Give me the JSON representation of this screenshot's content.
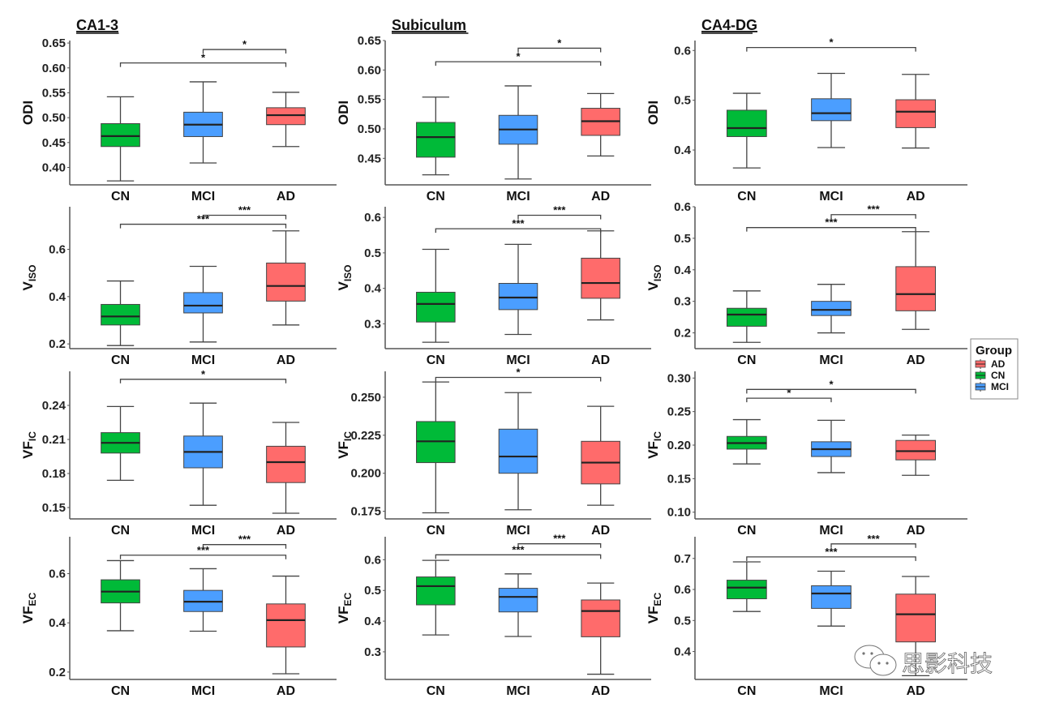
{
  "colors": {
    "CN": "#00BA38",
    "MCI": "#4B9EFF",
    "AD": "#FF6B6B",
    "line": "#444444",
    "median": "#222222"
  },
  "watermark": "思影科技",
  "legend": {
    "title": "Group",
    "items": [
      {
        "label": "AD",
        "group": "AD"
      },
      {
        "label": "CN",
        "group": "CN"
      },
      {
        "label": "MCI",
        "group": "MCI"
      }
    ],
    "position": "right"
  },
  "chart_data": [
    {
      "type": "boxplot",
      "region": "CA1-3",
      "title": "CA1-3",
      "ylabel": "ODI",
      "ylabel_sub": "",
      "categories": [
        "CN",
        "MCI",
        "AD"
      ],
      "ylim": [
        0.365,
        0.655
      ],
      "yticks": [
        0.4,
        0.45,
        0.5,
        0.55,
        0.6,
        0.65
      ],
      "tick_fmt": 2,
      "boxes": [
        {
          "group": "CN",
          "min": 0.373,
          "q1": 0.442,
          "median": 0.463,
          "q3": 0.488,
          "max": 0.542
        },
        {
          "group": "MCI",
          "min": 0.409,
          "q1": 0.462,
          "median": 0.486,
          "q3": 0.511,
          "max": 0.572
        },
        {
          "group": "AD",
          "min": 0.442,
          "q1": 0.486,
          "median": 0.505,
          "q3": 0.52,
          "max": 0.551
        }
      ],
      "brackets": [
        {
          "from": "MCI",
          "to": "AD",
          "label": "*",
          "level": 0.637
        },
        {
          "from": "CN",
          "to": "AD",
          "label": "*",
          "level": 0.61
        }
      ]
    },
    {
      "type": "boxplot",
      "region": "Subiculum",
      "title": "Subiculum",
      "ylabel": "ODI",
      "ylabel_sub": "",
      "categories": [
        "CN",
        "MCI",
        "AD"
      ],
      "ylim": [
        0.405,
        0.65
      ],
      "yticks": [
        0.45,
        0.5,
        0.55,
        0.6,
        0.65
      ],
      "tick_fmt": 2,
      "boxes": [
        {
          "group": "CN",
          "min": 0.422,
          "q1": 0.452,
          "median": 0.486,
          "q3": 0.511,
          "max": 0.554
        },
        {
          "group": "MCI",
          "min": 0.415,
          "q1": 0.474,
          "median": 0.499,
          "q3": 0.523,
          "max": 0.573
        },
        {
          "group": "AD",
          "min": 0.454,
          "q1": 0.489,
          "median": 0.513,
          "q3": 0.535,
          "max": 0.56
        }
      ],
      "brackets": [
        {
          "from": "MCI",
          "to": "AD",
          "label": "*",
          "level": 0.637
        },
        {
          "from": "CN",
          "to": "AD",
          "label": "*",
          "level": 0.614
        }
      ]
    },
    {
      "type": "boxplot",
      "region": "CA4-DG",
      "title": "CA4-DG",
      "ylabel": "ODI",
      "ylabel_sub": "",
      "categories": [
        "CN",
        "MCI",
        "AD"
      ],
      "ylim": [
        0.33,
        0.62
      ],
      "yticks": [
        0.4,
        0.5,
        0.6
      ],
      "tick_fmt": 1,
      "boxes": [
        {
          "group": "CN",
          "min": 0.364,
          "q1": 0.427,
          "median": 0.444,
          "q3": 0.48,
          "max": 0.514
        },
        {
          "group": "MCI",
          "min": 0.405,
          "q1": 0.459,
          "median": 0.474,
          "q3": 0.503,
          "max": 0.554
        },
        {
          "group": "AD",
          "min": 0.404,
          "q1": 0.445,
          "median": 0.477,
          "q3": 0.501,
          "max": 0.552
        }
      ],
      "brackets": [
        {
          "from": "CN",
          "to": "AD",
          "label": "*",
          "level": 0.606
        }
      ]
    },
    {
      "type": "boxplot",
      "region": "CA1-3",
      "title": "",
      "ylabel": "V",
      "ylabel_sub": "ISO",
      "categories": [
        "CN",
        "MCI",
        "AD"
      ],
      "ylim": [
        0.18,
        0.78
      ],
      "yticks": [
        0.2,
        0.4,
        0.6
      ],
      "tick_fmt": 1,
      "boxes": [
        {
          "group": "CN",
          "min": 0.193,
          "q1": 0.28,
          "median": 0.316,
          "q3": 0.367,
          "max": 0.466
        },
        {
          "group": "MCI",
          "min": 0.208,
          "q1": 0.331,
          "median": 0.362,
          "q3": 0.417,
          "max": 0.528
        },
        {
          "group": "AD",
          "min": 0.28,
          "q1": 0.381,
          "median": 0.445,
          "q3": 0.542,
          "max": 0.678
        }
      ],
      "brackets": [
        {
          "from": "MCI",
          "to": "AD",
          "label": "***",
          "level": 0.744
        },
        {
          "from": "CN",
          "to": "AD",
          "label": "***",
          "level": 0.706
        }
      ]
    },
    {
      "type": "boxplot",
      "region": "Subiculum",
      "title": "",
      "ylabel": "V",
      "ylabel_sub": "ISO",
      "categories": [
        "CN",
        "MCI",
        "AD"
      ],
      "ylim": [
        0.23,
        0.63
      ],
      "yticks": [
        0.3,
        0.4,
        0.5,
        0.6
      ],
      "tick_fmt": 1,
      "boxes": [
        {
          "group": "CN",
          "min": 0.248,
          "q1": 0.305,
          "median": 0.356,
          "q3": 0.389,
          "max": 0.51
        },
        {
          "group": "MCI",
          "min": 0.27,
          "q1": 0.34,
          "median": 0.374,
          "q3": 0.414,
          "max": 0.524
        },
        {
          "group": "AD",
          "min": 0.311,
          "q1": 0.372,
          "median": 0.415,
          "q3": 0.485,
          "max": 0.562
        }
      ],
      "brackets": [
        {
          "from": "MCI",
          "to": "AD",
          "label": "***",
          "level": 0.606
        },
        {
          "from": "CN",
          "to": "AD",
          "label": "***",
          "level": 0.568
        }
      ]
    },
    {
      "type": "boxplot",
      "region": "CA4-DG",
      "title": "",
      "ylabel": "V",
      "ylabel_sub": "ISO",
      "categories": [
        "CN",
        "MCI",
        "AD"
      ],
      "ylim": [
        0.15,
        0.6
      ],
      "yticks": [
        0.2,
        0.3,
        0.4,
        0.5,
        0.6
      ],
      "tick_fmt": 1,
      "boxes": [
        {
          "group": "CN",
          "min": 0.17,
          "q1": 0.221,
          "median": 0.258,
          "q3": 0.278,
          "max": 0.333
        },
        {
          "group": "MCI",
          "min": 0.2,
          "q1": 0.255,
          "median": 0.273,
          "q3": 0.3,
          "max": 0.354
        },
        {
          "group": "AD",
          "min": 0.211,
          "q1": 0.27,
          "median": 0.323,
          "q3": 0.41,
          "max": 0.521
        }
      ],
      "brackets": [
        {
          "from": "MCI",
          "to": "AD",
          "label": "***",
          "level": 0.575
        },
        {
          "from": "CN",
          "to": "AD",
          "label": "***",
          "level": 0.534
        }
      ]
    },
    {
      "type": "boxplot",
      "region": "CA1-3",
      "title": "",
      "ylabel": "VF",
      "ylabel_sub": "IC",
      "categories": [
        "CN",
        "MCI",
        "AD"
      ],
      "ylim": [
        0.14,
        0.27
      ],
      "yticks": [
        0.15,
        0.18,
        0.21,
        0.24
      ],
      "tick_fmt": 2,
      "boxes": [
        {
          "group": "CN",
          "min": 0.174,
          "q1": 0.198,
          "median": 0.207,
          "q3": 0.216,
          "max": 0.239
        },
        {
          "group": "MCI",
          "min": 0.152,
          "q1": 0.185,
          "median": 0.199,
          "q3": 0.213,
          "max": 0.242
        },
        {
          "group": "AD",
          "min": 0.145,
          "q1": 0.172,
          "median": 0.19,
          "q3": 0.204,
          "max": 0.225
        }
      ],
      "brackets": [
        {
          "from": "CN",
          "to": "AD",
          "label": "*",
          "level": 0.263
        }
      ]
    },
    {
      "type": "boxplot",
      "region": "Subiculum",
      "title": "",
      "ylabel": "VF",
      "ylabel_sub": "IC",
      "categories": [
        "CN",
        "MCI",
        "AD"
      ],
      "ylim": [
        0.17,
        0.267
      ],
      "yticks": [
        0.175,
        0.2,
        0.225,
        0.25
      ],
      "tick_fmt": 3,
      "boxes": [
        {
          "group": "CN",
          "min": 0.174,
          "q1": 0.207,
          "median": 0.221,
          "q3": 0.234,
          "max": 0.26
        },
        {
          "group": "MCI",
          "min": 0.176,
          "q1": 0.2,
          "median": 0.211,
          "q3": 0.229,
          "max": 0.253
        },
        {
          "group": "AD",
          "min": 0.179,
          "q1": 0.193,
          "median": 0.207,
          "q3": 0.221,
          "max": 0.244
        }
      ],
      "brackets": [
        {
          "from": "CN",
          "to": "AD",
          "label": "*",
          "level": 0.263
        }
      ]
    },
    {
      "type": "boxplot",
      "region": "CA4-DG",
      "title": "",
      "ylabel": "VF",
      "ylabel_sub": "IC",
      "categories": [
        "CN",
        "MCI",
        "AD"
      ],
      "ylim": [
        0.09,
        0.31
      ],
      "yticks": [
        0.1,
        0.15,
        0.2,
        0.25,
        0.3
      ],
      "tick_fmt": 2,
      "boxes": [
        {
          "group": "CN",
          "min": 0.172,
          "q1": 0.194,
          "median": 0.203,
          "q3": 0.213,
          "max": 0.238
        },
        {
          "group": "MCI",
          "min": 0.159,
          "q1": 0.183,
          "median": 0.194,
          "q3": 0.205,
          "max": 0.237
        },
        {
          "group": "AD",
          "min": 0.155,
          "q1": 0.178,
          "median": 0.191,
          "q3": 0.207,
          "max": 0.215
        }
      ],
      "brackets": [
        {
          "from": "CN",
          "to": "MCI",
          "label": "*",
          "level": 0.27
        },
        {
          "from": "CN",
          "to": "AD",
          "label": "*",
          "level": 0.283
        }
      ]
    },
    {
      "type": "boxplot",
      "region": "CA1-3",
      "title": "",
      "ylabel": "VF",
      "ylabel_sub": "EC",
      "categories": [
        "CN",
        "MCI",
        "AD"
      ],
      "ylim": [
        0.17,
        0.75
      ],
      "yticks": [
        0.2,
        0.4,
        0.6
      ],
      "tick_fmt": 1,
      "boxes": [
        {
          "group": "CN",
          "min": 0.368,
          "q1": 0.481,
          "median": 0.527,
          "q3": 0.575,
          "max": 0.653
        },
        {
          "group": "MCI",
          "min": 0.366,
          "q1": 0.446,
          "median": 0.486,
          "q3": 0.532,
          "max": 0.62
        },
        {
          "group": "AD",
          "min": 0.193,
          "q1": 0.302,
          "median": 0.411,
          "q3": 0.477,
          "max": 0.59
        }
      ],
      "brackets": [
        {
          "from": "MCI",
          "to": "AD",
          "label": "***",
          "level": 0.718
        },
        {
          "from": "CN",
          "to": "AD",
          "label": "***",
          "level": 0.675
        }
      ]
    },
    {
      "type": "boxplot",
      "region": "Subiculum",
      "title": "",
      "ylabel": "VF",
      "ylabel_sub": "EC",
      "categories": [
        "CN",
        "MCI",
        "AD"
      ],
      "ylim": [
        0.21,
        0.675
      ],
      "yticks": [
        0.3,
        0.4,
        0.5,
        0.6
      ],
      "tick_fmt": 1,
      "boxes": [
        {
          "group": "CN",
          "min": 0.355,
          "q1": 0.453,
          "median": 0.514,
          "q3": 0.544,
          "max": 0.598
        },
        {
          "group": "MCI",
          "min": 0.35,
          "q1": 0.43,
          "median": 0.479,
          "q3": 0.507,
          "max": 0.554
        },
        {
          "group": "AD",
          "min": 0.227,
          "q1": 0.349,
          "median": 0.433,
          "q3": 0.469,
          "max": 0.524
        }
      ],
      "brackets": [
        {
          "from": "MCI",
          "to": "AD",
          "label": "***",
          "level": 0.652
        },
        {
          "from": "CN",
          "to": "AD",
          "label": "***",
          "level": 0.616
        }
      ]
    },
    {
      "type": "boxplot",
      "region": "CA4-DG",
      "title": "",
      "ylabel": "VF",
      "ylabel_sub": "EC",
      "categories": [
        "CN",
        "MCI",
        "AD"
      ],
      "ylim": [
        0.31,
        0.77
      ],
      "yticks": [
        0.4,
        0.5,
        0.6,
        0.7
      ],
      "tick_fmt": 1,
      "boxes": [
        {
          "group": "CN",
          "min": 0.529,
          "q1": 0.57,
          "median": 0.606,
          "q3": 0.63,
          "max": 0.689
        },
        {
          "group": "MCI",
          "min": 0.482,
          "q1": 0.539,
          "median": 0.587,
          "q3": 0.612,
          "max": 0.659
        },
        {
          "group": "AD",
          "min": 0.322,
          "q1": 0.431,
          "median": 0.52,
          "q3": 0.585,
          "max": 0.642
        }
      ],
      "brackets": [
        {
          "from": "MCI",
          "to": "AD",
          "label": "***",
          "level": 0.747
        },
        {
          "from": "CN",
          "to": "AD",
          "label": "***",
          "level": 0.705
        }
      ]
    }
  ]
}
